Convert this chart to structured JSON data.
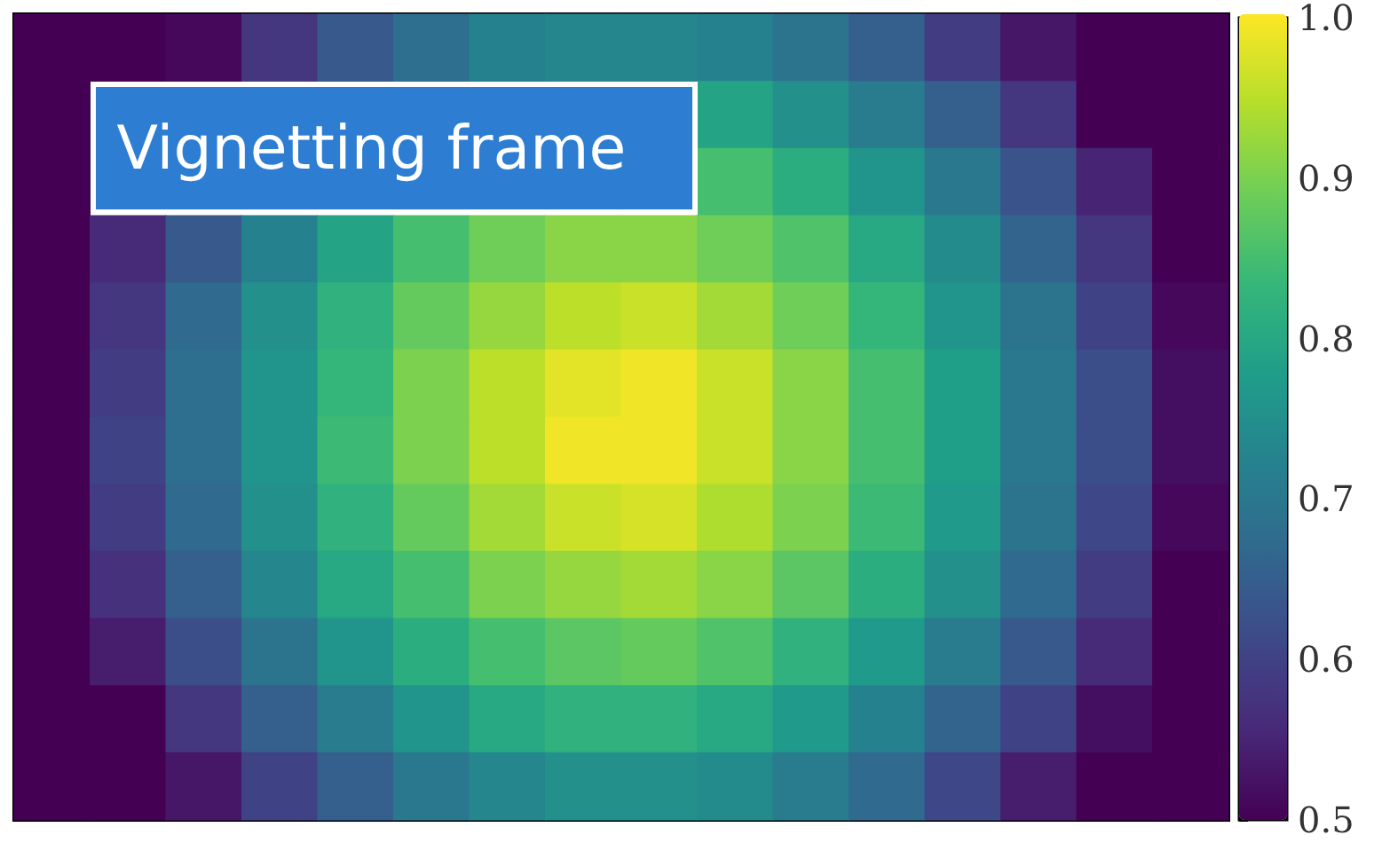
{
  "chart_data": {
    "type": "heatmap",
    "title": "Vignetting frame",
    "categories": [
      null,
      null,
      null,
      null,
      null,
      null,
      null,
      null,
      null,
      null,
      null,
      null,
      null,
      null,
      null,
      null
    ],
    "y_categories": [
      null,
      null,
      null,
      null,
      null,
      null,
      null,
      null,
      null,
      null,
      null,
      null
    ],
    "cells": [
      [
        0.5,
        0.5,
        0.51,
        0.58,
        0.64,
        0.68,
        0.72,
        0.73,
        0.73,
        0.72,
        0.69,
        0.65,
        0.59,
        0.53,
        0.5,
        0.5
      ],
      [
        0.5,
        null,
        null,
        null,
        null,
        null,
        null,
        null,
        null,
        0.79,
        0.75,
        0.71,
        0.65,
        0.58,
        0.5,
        0.5
      ],
      [
        0.5,
        null,
        null,
        null,
        null,
        null,
        null,
        null,
        null,
        0.85,
        0.81,
        0.76,
        0.7,
        0.63,
        0.55,
        0.5
      ],
      [
        0.5,
        0.56,
        0.64,
        0.72,
        0.79,
        0.85,
        0.89,
        0.91,
        0.91,
        0.89,
        0.86,
        0.8,
        0.74,
        0.66,
        0.58,
        0.5
      ],
      [
        0.5,
        0.58,
        0.67,
        0.75,
        0.82,
        0.88,
        0.92,
        0.95,
        0.96,
        0.93,
        0.89,
        0.83,
        0.76,
        0.69,
        0.6,
        0.51
      ],
      [
        0.5,
        0.59,
        0.68,
        0.76,
        0.83,
        0.9,
        0.95,
        0.98,
        0.99,
        0.96,
        0.91,
        0.85,
        0.78,
        0.7,
        0.62,
        0.52
      ],
      [
        0.5,
        0.6,
        0.68,
        0.76,
        0.84,
        0.9,
        0.95,
        0.99,
        0.99,
        0.96,
        0.91,
        0.85,
        0.78,
        0.7,
        0.62,
        0.52
      ],
      [
        0.5,
        0.59,
        0.67,
        0.75,
        0.82,
        0.88,
        0.93,
        0.96,
        0.97,
        0.94,
        0.9,
        0.84,
        0.77,
        0.69,
        0.61,
        0.51
      ],
      [
        0.5,
        0.57,
        0.65,
        0.73,
        0.8,
        0.85,
        0.9,
        0.92,
        0.93,
        0.91,
        0.87,
        0.81,
        0.75,
        0.67,
        0.59,
        0.5
      ],
      [
        0.5,
        0.54,
        0.62,
        0.69,
        0.76,
        0.81,
        0.85,
        0.87,
        0.88,
        0.86,
        0.82,
        0.77,
        0.71,
        0.64,
        0.56,
        0.5
      ],
      [
        0.5,
        0.5,
        0.58,
        0.65,
        0.71,
        0.76,
        0.8,
        0.82,
        0.82,
        0.8,
        0.77,
        0.72,
        0.66,
        0.6,
        0.52,
        0.5
      ],
      [
        0.5,
        0.5,
        0.53,
        0.6,
        0.65,
        0.7,
        0.73,
        0.75,
        0.75,
        0.74,
        0.71,
        0.67,
        0.61,
        0.54,
        0.5,
        0.5
      ]
    ],
    "clim": [
      0.5,
      1
    ],
    "cticks": [
      0.5,
      0.6,
      0.7,
      0.8,
      0.9,
      {
        "value": 1,
        "label": "1.0"
      }
    ]
  }
}
